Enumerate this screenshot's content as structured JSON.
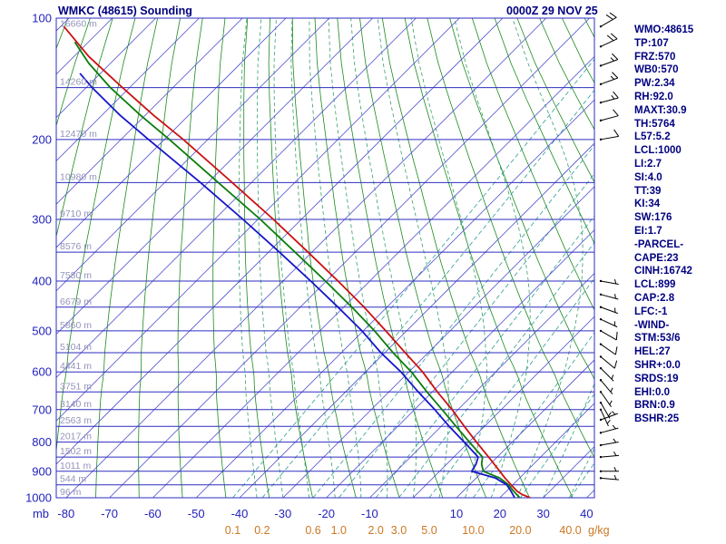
{
  "header": {
    "title": "WMKC (48615) Sounding",
    "date": "0000Z 29 NOV 25"
  },
  "colors": {
    "navy": "#000080",
    "isobar_blue": "#2d2dc0",
    "isotherm_blue": "#5050d0",
    "dry_adiabat_green": "#1c8a1c",
    "moist_adiabat_green": "#35a06a",
    "mixing_ratio_teal": "#2e9d96",
    "pressure_label_blue": "#2222bb",
    "height_label_gray": "#9393bb",
    "temp_label_blue": "#2222bb",
    "mixing_label_orange": "#cc7722",
    "temperature_red": "#cc1111",
    "wetbulb_green": "#0c7d0c",
    "dewpoint_blue": "#1616c8",
    "barb_black": "#000000"
  },
  "stats_panel": {
    "lines": [
      "WMO:48615",
      "TP:107",
      "FRZ:570",
      "WB0:570",
      "PW:2.34",
      "RH:92.0",
      "MAXT:30.9",
      "TH:5764",
      "L57:5.2",
      "LCL:1000",
      "LI:2.7",
      "SI:4.0",
      "TT:39",
      "KI:34",
      "SW:176",
      "EI:1.7",
      "-PARCEL-",
      "CAPE:23",
      "CINH:16742",
      "LCL:899",
      "CAP:2.8",
      "LFC:-1",
      "-WIND-",
      "STM:53/6",
      "HEL:27",
      "SHR+:0.0",
      "SRDS:19",
      "EHI:0.0",
      "BRN:0.9",
      "BSHR:25"
    ]
  },
  "chart_data": {
    "type": "skewt",
    "title": "WMKC (48615) Sounding",
    "pressure_axis": {
      "unit": "mb",
      "major_ticks": [
        100,
        200,
        300,
        400,
        500,
        600,
        700,
        800,
        900,
        1000
      ]
    },
    "temp_axis": {
      "unit": "C",
      "ticks": [
        -80,
        -70,
        -60,
        -50,
        -40,
        -30,
        -20,
        -10,
        10,
        20,
        30,
        40
      ]
    },
    "mixing_ratio": {
      "unit": "g/kg",
      "values": [
        0.1,
        0.2,
        0.6,
        1.0,
        2.0,
        3.0,
        5.0,
        10.0,
        20.0,
        40
      ]
    },
    "height_label_suffix": " m",
    "levels": [
      [
        100,
        16660
      ],
      [
        150,
        14260
      ],
      [
        200,
        12470
      ],
      [
        250,
        10980
      ],
      [
        300,
        9710
      ],
      [
        350,
        8576
      ],
      [
        400,
        7580
      ],
      [
        450,
        6679
      ],
      [
        500,
        5860
      ],
      [
        550,
        5104
      ],
      [
        600,
        4441
      ],
      [
        650,
        3751
      ],
      [
        700,
        3140
      ],
      [
        750,
        2563
      ],
      [
        800,
        2017
      ],
      [
        850,
        1502
      ],
      [
        900,
        1011
      ],
      [
        950,
        544
      ],
      [
        1000,
        96
      ]
    ],
    "isotherms": {
      "min": -190,
      "max": 40,
      "step": 10
    },
    "dry_adiabats": {
      "theta_k_min": 150,
      "theta_k_max": 440,
      "step": 10
    },
    "moist_adiabats": {
      "start_temps_c": [
        -36,
        -30,
        -24,
        -18,
        -12,
        -6,
        0,
        6,
        12,
        18,
        24,
        30,
        36
      ]
    },
    "series": [
      {
        "name": "temperature",
        "color": "#cc1111",
        "points": [
          [
            1000,
            27.0
          ],
          [
            988,
            25.2
          ],
          [
            975,
            24.0
          ],
          [
            950,
            22.6
          ],
          [
            925,
            21.2
          ],
          [
            900,
            20.0
          ],
          [
            850,
            17.4
          ],
          [
            800,
            14.6
          ],
          [
            750,
            11.8
          ],
          [
            700,
            9.0
          ],
          [
            650,
            5.6
          ],
          [
            600,
            2.2
          ],
          [
            550,
            -1.8
          ],
          [
            500,
            -6.3
          ],
          [
            450,
            -11.3
          ],
          [
            400,
            -17.3
          ],
          [
            350,
            -24.2
          ],
          [
            300,
            -32.2
          ],
          [
            250,
            -41.7
          ],
          [
            200,
            -53.0
          ],
          [
            175,
            -59.8
          ],
          [
            150,
            -67.0
          ],
          [
            125,
            -74.8
          ],
          [
            105,
            -80.5
          ]
        ]
      },
      {
        "name": "wet_bulb",
        "color": "#0c7d0c",
        "points": [
          [
            1000,
            24.6
          ],
          [
            975,
            23.2
          ],
          [
            950,
            22.0
          ],
          [
            925,
            20.0
          ],
          [
            900,
            16.2
          ],
          [
            875,
            15.8
          ],
          [
            850,
            16.0
          ],
          [
            800,
            13.0
          ],
          [
            750,
            9.9
          ],
          [
            700,
            6.7
          ],
          [
            650,
            3.2
          ],
          [
            600,
            -0.4
          ],
          [
            550,
            -4.6
          ],
          [
            500,
            -8.9
          ],
          [
            450,
            -14.1
          ],
          [
            400,
            -20.2
          ],
          [
            350,
            -27.2
          ],
          [
            300,
            -35.2
          ],
          [
            250,
            -44.9
          ],
          [
            200,
            -56.2
          ],
          [
            175,
            -62.8
          ],
          [
            150,
            -69.8
          ],
          [
            130,
            -74.8
          ],
          [
            115,
            -78.0
          ]
        ]
      },
      {
        "name": "dewpoint",
        "color": "#1616c8",
        "points": [
          [
            1000,
            23.4
          ],
          [
            975,
            22.6
          ],
          [
            950,
            21.6
          ],
          [
            925,
            19.0
          ],
          [
            900,
            13.5
          ],
          [
            875,
            14.5
          ],
          [
            850,
            15.0
          ],
          [
            800,
            11.8
          ],
          [
            750,
            8.3
          ],
          [
            700,
            5.0
          ],
          [
            650,
            1.2
          ],
          [
            600,
            -2.8
          ],
          [
            550,
            -7.4
          ],
          [
            500,
            -11.8
          ],
          [
            450,
            -17.3
          ],
          [
            400,
            -23.6
          ],
          [
            350,
            -30.8
          ],
          [
            300,
            -39.2
          ],
          [
            250,
            -49.0
          ],
          [
            200,
            -61.0
          ],
          [
            175,
            -67.5
          ],
          [
            150,
            -74.0
          ],
          [
            138,
            -76.8
          ]
        ]
      }
    ],
    "wind_barbs": [
      [
        105,
        20,
        60
      ],
      [
        118,
        20,
        65
      ],
      [
        132,
        15,
        70
      ],
      [
        147,
        15,
        70
      ],
      [
        163,
        15,
        75
      ],
      [
        180,
        10,
        75
      ],
      [
        200,
        10,
        80
      ],
      [
        400,
        5,
        100
      ],
      [
        425,
        7,
        105
      ],
      [
        450,
        7,
        110
      ],
      [
        475,
        7,
        115
      ],
      [
        500,
        10,
        120
      ],
      [
        530,
        10,
        125
      ],
      [
        560,
        10,
        130
      ],
      [
        590,
        7,
        135
      ],
      [
        620,
        7,
        140
      ],
      [
        650,
        5,
        145
      ],
      [
        680,
        5,
        150
      ],
      [
        700,
        5,
        155
      ],
      [
        730,
        5,
        70
      ],
      [
        770,
        5,
        75
      ],
      [
        810,
        7,
        80
      ],
      [
        850,
        7,
        85
      ],
      [
        900,
        5,
        90
      ],
      [
        925,
        5,
        95
      ]
    ]
  }
}
